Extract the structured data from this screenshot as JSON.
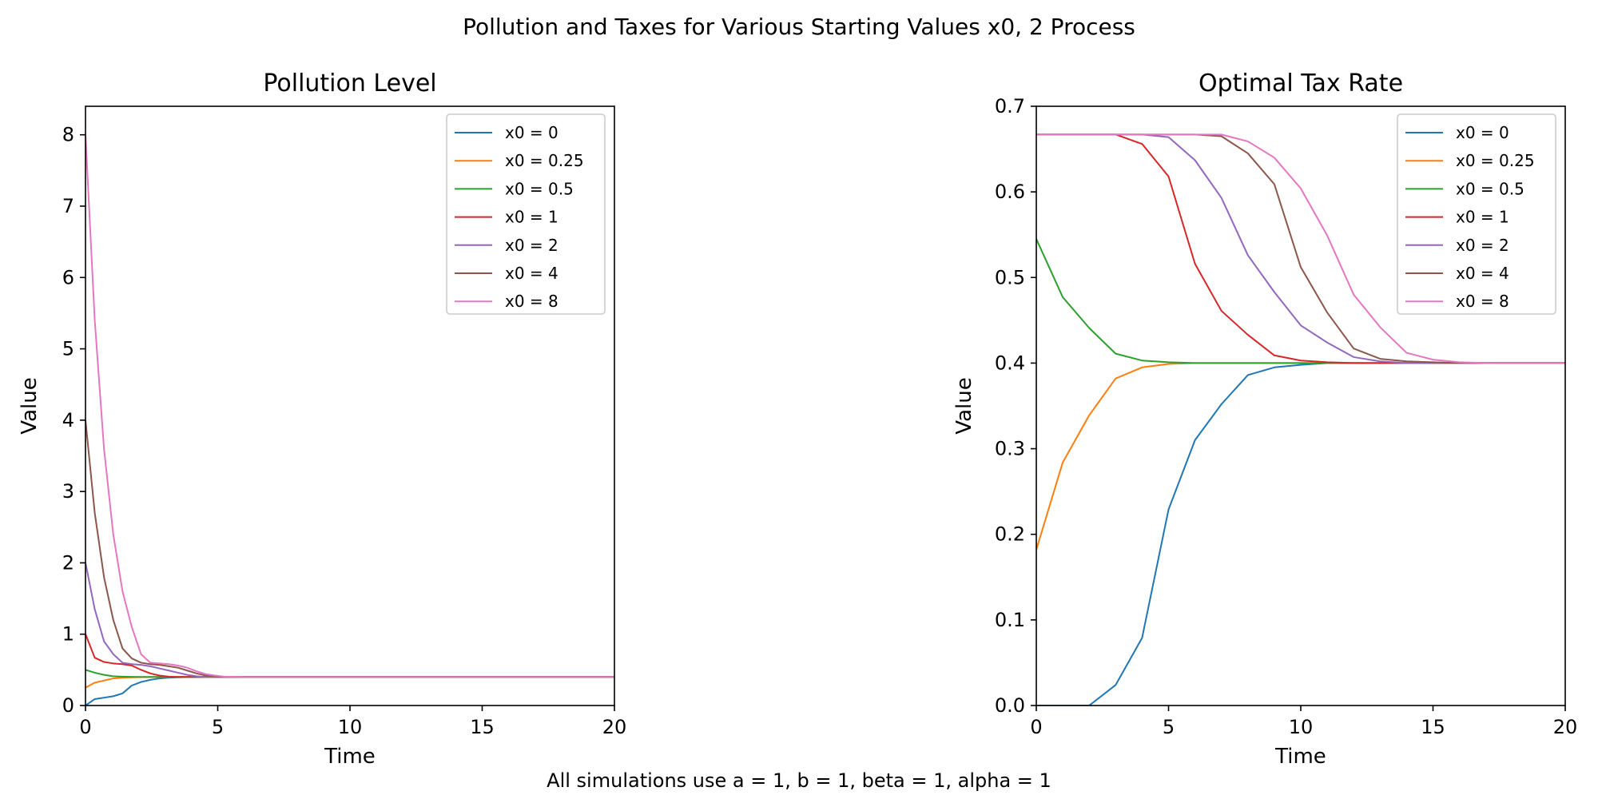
{
  "figure": {
    "suptitle": "Pollution and Taxes for Various Starting Values x0, 2 Process",
    "footnote": "All simulations use a = 1, b = 1, beta = 1, alpha = 1"
  },
  "series_colors": [
    "#1f77b4",
    "#ff7f0e",
    "#2ca02c",
    "#d62728",
    "#9467bd",
    "#8c564b",
    "#e377c2"
  ],
  "chart_data": [
    {
      "type": "line",
      "title": "Pollution Level",
      "xlabel": "Time",
      "ylabel": "Value",
      "xlim": [
        0,
        20
      ],
      "ylim": [
        0,
        8.4
      ],
      "xticks": [
        0,
        5,
        10,
        15,
        20
      ],
      "yticks": [
        0,
        1,
        2,
        3,
        4,
        5,
        6,
        7,
        8
      ],
      "grid": false,
      "legend_position": "top-right",
      "series": [
        {
          "name": "x0 = 0",
          "x": [
            0,
            0.35,
            0.7,
            1.05,
            1.4,
            1.75,
            2.1,
            2.45,
            2.8,
            3.15,
            3.5,
            4,
            4.5,
            5,
            5.5,
            6,
            8,
            10,
            12,
            14,
            16,
            18,
            20
          ],
          "y": [
            0,
            0.09,
            0.11,
            0.13,
            0.17,
            0.28,
            0.33,
            0.36,
            0.38,
            0.39,
            0.395,
            0.4,
            0.4,
            0.4,
            0.4,
            0.4,
            0.4,
            0.4,
            0.4,
            0.4,
            0.4,
            0.4,
            0.4
          ]
        },
        {
          "name": "x0 = 0.25",
          "x": [
            0,
            0.35,
            0.7,
            1.05,
            1.4,
            1.75,
            2.1,
            2.8,
            3.5,
            4,
            5,
            6,
            8,
            10,
            12,
            14,
            16,
            18,
            20
          ],
          "y": [
            0.25,
            0.32,
            0.35,
            0.38,
            0.39,
            0.395,
            0.398,
            0.4,
            0.4,
            0.4,
            0.4,
            0.4,
            0.4,
            0.4,
            0.4,
            0.4,
            0.4,
            0.4,
            0.4
          ]
        },
        {
          "name": "x0 = 0.5",
          "x": [
            0,
            0.35,
            0.7,
            1.05,
            1.4,
            1.75,
            2.1,
            2.8,
            3.5,
            4,
            5,
            6,
            8,
            10,
            12,
            14,
            16,
            18,
            20
          ],
          "y": [
            0.5,
            0.46,
            0.43,
            0.41,
            0.405,
            0.402,
            0.4,
            0.4,
            0.4,
            0.4,
            0.4,
            0.4,
            0.4,
            0.4,
            0.4,
            0.4,
            0.4,
            0.4,
            0.4
          ]
        },
        {
          "name": "x0 = 1",
          "x": [
            0,
            0.35,
            0.7,
            1.05,
            1.4,
            1.75,
            2.1,
            2.45,
            2.8,
            3.15,
            3.5,
            4,
            4.5,
            5,
            6,
            8,
            10,
            12,
            14,
            16,
            18,
            20
          ],
          "y": [
            1.0,
            0.67,
            0.61,
            0.59,
            0.58,
            0.56,
            0.5,
            0.45,
            0.42,
            0.405,
            0.4,
            0.4,
            0.4,
            0.4,
            0.4,
            0.4,
            0.4,
            0.4,
            0.4,
            0.4,
            0.4,
            0.4
          ]
        },
        {
          "name": "x0 = 2",
          "x": [
            0,
            0.35,
            0.7,
            1.05,
            1.4,
            1.75,
            2.1,
            2.45,
            2.8,
            3.15,
            3.5,
            3.85,
            4.2,
            4.55,
            5,
            5.5,
            6,
            8,
            10,
            12,
            14,
            16,
            18,
            20
          ],
          "y": [
            2.0,
            1.35,
            0.9,
            0.72,
            0.6,
            0.58,
            0.57,
            0.55,
            0.52,
            0.49,
            0.46,
            0.43,
            0.41,
            0.4,
            0.4,
            0.4,
            0.4,
            0.4,
            0.4,
            0.4,
            0.4,
            0.4,
            0.4,
            0.4
          ]
        },
        {
          "name": "x0 = 4",
          "x": [
            0,
            0.35,
            0.7,
            1.05,
            1.4,
            1.75,
            2.1,
            2.45,
            2.8,
            3.15,
            3.5,
            3.85,
            4.2,
            4.55,
            4.9,
            5.25,
            6,
            8,
            10,
            12,
            14,
            16,
            18,
            20
          ],
          "y": [
            4.0,
            2.7,
            1.8,
            1.2,
            0.8,
            0.66,
            0.6,
            0.58,
            0.57,
            0.55,
            0.53,
            0.49,
            0.45,
            0.42,
            0.41,
            0.4,
            0.4,
            0.4,
            0.4,
            0.4,
            0.4,
            0.4,
            0.4,
            0.4
          ]
        },
        {
          "name": "x0 = 8",
          "x": [
            0,
            0.35,
            0.7,
            1.05,
            1.4,
            1.75,
            2.1,
            2.45,
            2.8,
            3.15,
            3.5,
            3.85,
            4.2,
            4.55,
            4.9,
            5.25,
            6,
            8,
            10,
            12,
            14,
            16,
            18,
            20
          ],
          "y": [
            8.0,
            5.4,
            3.6,
            2.4,
            1.6,
            1.1,
            0.72,
            0.6,
            0.59,
            0.58,
            0.56,
            0.53,
            0.48,
            0.44,
            0.42,
            0.405,
            0.4,
            0.4,
            0.4,
            0.4,
            0.4,
            0.4,
            0.4,
            0.4
          ]
        }
      ]
    },
    {
      "type": "line",
      "title": "Optimal Tax Rate",
      "xlabel": "Time",
      "ylabel": "Value",
      "xlim": [
        0,
        20
      ],
      "ylim": [
        0,
        0.7
      ],
      "xticks": [
        0,
        5,
        10,
        15,
        20
      ],
      "yticks": [
        0.0,
        0.1,
        0.2,
        0.3,
        0.4,
        0.5,
        0.6,
        0.7
      ],
      "ytick_labels": [
        "0.0",
        "0.1",
        "0.2",
        "0.3",
        "0.4",
        "0.5",
        "0.6",
        "0.7"
      ],
      "grid": false,
      "legend_position": "top-right",
      "series": [
        {
          "name": "x0 = 0",
          "x": [
            0,
            1,
            2,
            3,
            4,
            5,
            6,
            7,
            8,
            9,
            10,
            11,
            12,
            13,
            14,
            15,
            16,
            17,
            18,
            19,
            20
          ],
          "y": [
            0,
            0,
            0,
            0.024,
            0.079,
            0.229,
            0.31,
            0.352,
            0.386,
            0.395,
            0.398,
            0.4,
            0.4,
            0.4,
            0.4,
            0.4,
            0.4,
            0.4,
            0.4,
            0.4,
            0.4
          ]
        },
        {
          "name": "x0 = 0.25",
          "x": [
            0,
            1,
            2,
            3,
            4,
            5,
            6,
            7,
            8,
            9,
            10,
            11,
            12,
            13,
            14,
            15,
            16,
            17,
            18,
            19,
            20
          ],
          "y": [
            0.182,
            0.284,
            0.339,
            0.382,
            0.395,
            0.399,
            0.4,
            0.4,
            0.4,
            0.4,
            0.4,
            0.4,
            0.4,
            0.4,
            0.4,
            0.4,
            0.4,
            0.4,
            0.4,
            0.4,
            0.4
          ]
        },
        {
          "name": "x0 = 0.5",
          "x": [
            0,
            1,
            2,
            3,
            4,
            5,
            6,
            7,
            8,
            9,
            10,
            11,
            12,
            13,
            14,
            15,
            16,
            17,
            18,
            19,
            20
          ],
          "y": [
            0.545,
            0.477,
            0.441,
            0.411,
            0.403,
            0.401,
            0.4,
            0.4,
            0.4,
            0.4,
            0.4,
            0.4,
            0.4,
            0.4,
            0.4,
            0.4,
            0.4,
            0.4,
            0.4,
            0.4,
            0.4
          ]
        },
        {
          "name": "x0 = 1",
          "x": [
            0,
            1,
            2,
            3,
            4,
            5,
            6,
            7,
            8,
            9,
            10,
            11,
            12,
            13,
            14,
            15,
            16,
            17,
            18,
            19,
            20
          ],
          "y": [
            0.667,
            0.667,
            0.667,
            0.667,
            0.656,
            0.618,
            0.516,
            0.461,
            0.433,
            0.409,
            0.403,
            0.401,
            0.4,
            0.4,
            0.4,
            0.4,
            0.4,
            0.4,
            0.4,
            0.4,
            0.4
          ]
        },
        {
          "name": "x0 = 2",
          "x": [
            0,
            1,
            2,
            3,
            4,
            5,
            6,
            7,
            8,
            9,
            10,
            11,
            12,
            13,
            14,
            15,
            16,
            17,
            18,
            19,
            20
          ],
          "y": [
            0.667,
            0.667,
            0.667,
            0.667,
            0.667,
            0.664,
            0.637,
            0.593,
            0.526,
            0.483,
            0.444,
            0.424,
            0.407,
            0.402,
            0.4,
            0.4,
            0.4,
            0.4,
            0.4,
            0.4,
            0.4
          ]
        },
        {
          "name": "x0 = 4",
          "x": [
            0,
            1,
            2,
            3,
            4,
            5,
            6,
            7,
            8,
            9,
            10,
            11,
            12,
            13,
            14,
            15,
            16,
            17,
            18,
            19,
            20
          ],
          "y": [
            0.667,
            0.667,
            0.667,
            0.667,
            0.667,
            0.667,
            0.667,
            0.665,
            0.645,
            0.609,
            0.512,
            0.459,
            0.417,
            0.405,
            0.402,
            0.401,
            0.4,
            0.4,
            0.4,
            0.4,
            0.4
          ]
        },
        {
          "name": "x0 = 8",
          "x": [
            0,
            1,
            2,
            3,
            4,
            5,
            6,
            7,
            8,
            9,
            10,
            11,
            12,
            13,
            14,
            15,
            16,
            17,
            18,
            19,
            20
          ],
          "y": [
            0.667,
            0.667,
            0.667,
            0.667,
            0.667,
            0.667,
            0.667,
            0.667,
            0.659,
            0.64,
            0.604,
            0.549,
            0.48,
            0.442,
            0.412,
            0.404,
            0.401,
            0.4,
            0.4,
            0.4,
            0.4
          ]
        }
      ]
    }
  ]
}
